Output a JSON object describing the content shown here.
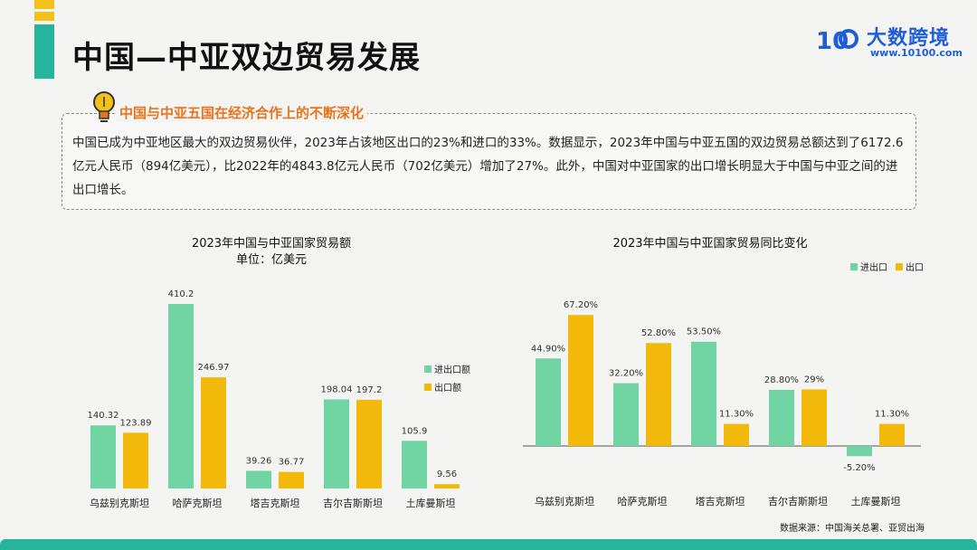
{
  "page": {
    "title": "中国—中亚双边贸易发展",
    "subtitle": "中国与中亚五国在经济合作上的不断深化",
    "body": "中国已成为中亚地区最大的双边贸易伙伴，2023年占该地区出口的23%和进口的33%。数据显示，2023年中国与中亚五国的双边贸易总额达到了6172.6亿元人民币（894亿美元），比2022年的4843.8亿元人民币（702亿美元）增加了27%。此外，中国对中亚国家的出口增长明显大于中国与中亚之间的进出口增长。",
    "source": "数据来源：中国海关总署、亚贸出海",
    "colors": {
      "teal": "#6fd3a2",
      "gold": "#f2b80a",
      "accent": "#e8731d",
      "band": "#27b49c",
      "brand": "#1e5fd8"
    }
  },
  "logo": {
    "name": "大数跨境",
    "url": "www.10100.com",
    "mark": "10"
  },
  "icons": {
    "bulb": "lightbulb-icon"
  },
  "chart_data": [
    {
      "type": "bar",
      "title": "2023年中国与中亚国家贸易额",
      "subtitle": "单位：亿美元",
      "categories": [
        "乌兹别克斯坦",
        "哈萨克斯坦",
        "塔吉克斯坦",
        "吉尔吉斯斯坦",
        "土库曼斯坦"
      ],
      "series": [
        {
          "name": "进出口额",
          "color": "#6fd3a2",
          "values": [
            140.32,
            410.2,
            39.26,
            198.04,
            105.9
          ],
          "labels": [
            "140.32",
            "410.2",
            "39.26",
            "198.04",
            "105.9"
          ]
        },
        {
          "name": "出口额",
          "color": "#f2b80a",
          "values": [
            123.89,
            246.97,
            36.77,
            197.2,
            9.56
          ],
          "labels": [
            "123.89",
            "246.97",
            "36.77",
            "197.2",
            "9.56"
          ]
        }
      ],
      "ylim": [
        0,
        410.2
      ],
      "legend": "right"
    },
    {
      "type": "bar",
      "title": "2023年中国与中亚国家贸易同比变化",
      "categories": [
        "乌兹别克斯坦",
        "哈萨克斯坦",
        "塔吉克斯坦",
        "吉尔吉斯斯坦",
        "土库曼斯坦"
      ],
      "series": [
        {
          "name": "进出口",
          "color": "#6fd3a2",
          "values": [
            44.9,
            32.2,
            53.5,
            28.8,
            -5.2
          ],
          "labels": [
            "44.90%",
            "32.20%",
            "53.50%",
            "28.80%",
            "-5.20%"
          ]
        },
        {
          "name": "出口",
          "color": "#f2b80a",
          "values": [
            67.2,
            52.8,
            11.3,
            29,
            11.3
          ],
          "labels": [
            "67.20%",
            "52.80%",
            "11.30%",
            "29%",
            "11.30%"
          ]
        }
      ],
      "ylim": [
        -5.2,
        67.2
      ],
      "legend": "top-right"
    }
  ]
}
